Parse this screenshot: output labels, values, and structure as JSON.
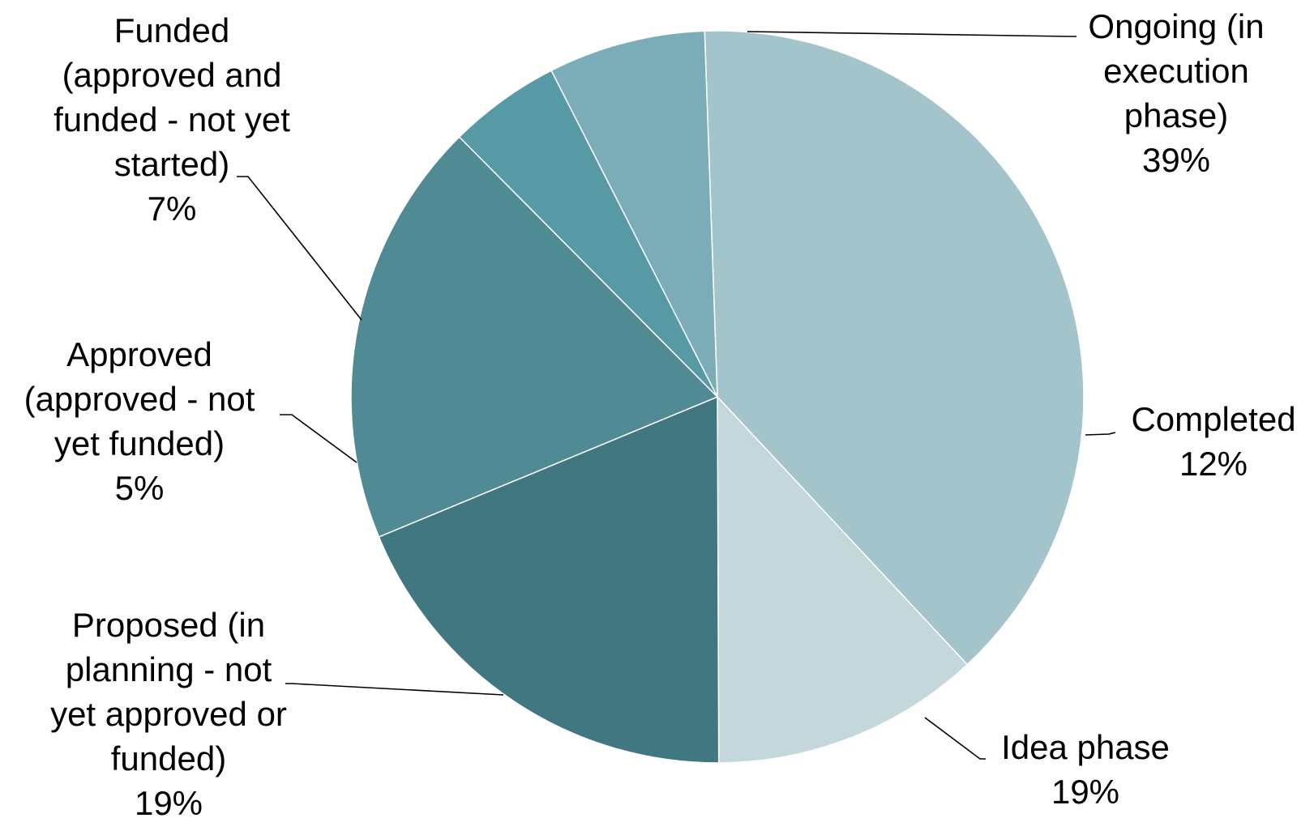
{
  "chart_data": {
    "type": "pie",
    "title": "",
    "legend": "none",
    "slices": [
      {
        "name": "Ongoing (in execution phase)",
        "label_lines": [
          "Ongoing (in",
          "execution",
          "phase)"
        ],
        "value": 39,
        "value_label": "39%",
        "color": "#a4c4cb"
      },
      {
        "name": "Completed",
        "label_lines": [
          "Completed"
        ],
        "value": 12,
        "value_label": "12%",
        "color": "#c4d8dc"
      },
      {
        "name": "Idea phase",
        "label_lines": [
          "Idea phase"
        ],
        "value": 19,
        "value_label": "19%",
        "color": "#417780"
      },
      {
        "name": "Proposed (in planning - not yet approved or funded)",
        "label_lines": [
          "Proposed (in",
          "planning - not",
          "yet approved or",
          "funded)"
        ],
        "value": 19,
        "value_label": "19%",
        "color": "#508a94"
      },
      {
        "name": "Approved (approved - not yet funded)",
        "label_lines": [
          "Approved",
          "(approved - not",
          "yet funded)"
        ],
        "value": 5,
        "value_label": "5%",
        "color": "#5799a5"
      },
      {
        "name": "Funded (approved and funded - not yet started)",
        "label_lines": [
          "Funded",
          "(approved and",
          "funded - not yet",
          "started)"
        ],
        "value": 7,
        "value_label": "7%",
        "color": "#7aadb7"
      }
    ]
  }
}
